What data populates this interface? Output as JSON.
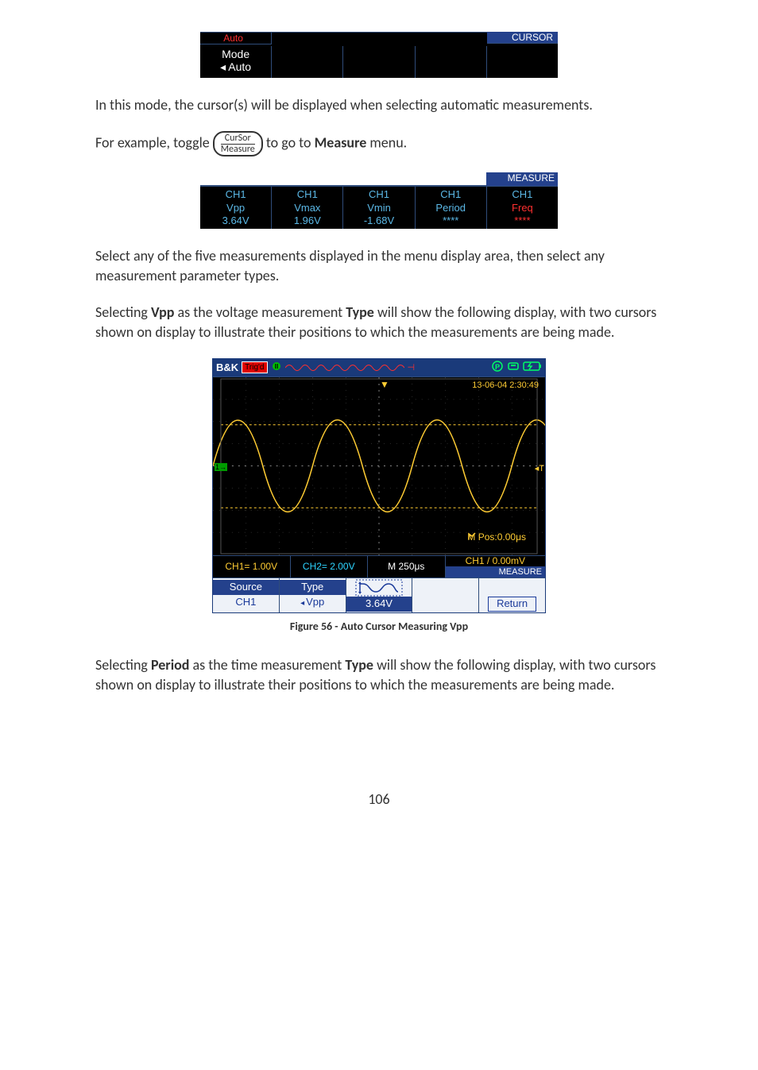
{
  "cursor_strip": {
    "title": "CURSOR",
    "auto_top": "Auto",
    "mode_label": "Mode",
    "mode_value": "Auto"
  },
  "para1": "In this mode, the cursor(s) will be displayed when selecting automatic measurements.",
  "para2_before": "For example, toggle ",
  "pill_top": "CurSor",
  "pill_bottom": "Measure",
  "para2_after_a": " to go to ",
  "para2_bold": "Measure",
  "para2_after_b": " menu.",
  "measure_strip": {
    "title": "MEASURE",
    "cells": [
      {
        "ch": "CH1",
        "param": "Vpp",
        "val": "3.64V"
      },
      {
        "ch": "CH1",
        "param": "Vmax",
        "val": "1.96V"
      },
      {
        "ch": "CH1",
        "param": "Vmin",
        "val": "-1.68V"
      },
      {
        "ch": "CH1",
        "param": "Period",
        "val": "****"
      },
      {
        "ch": "CH1",
        "param": "Freq",
        "val": "****",
        "freq": true
      }
    ]
  },
  "para3": "Select any of the five measurements displayed in the menu display area, then select any measurement parameter types.",
  "para4_a": "Selecting ",
  "para4_b": "Vpp",
  "para4_c": " as the voltage measurement ",
  "para4_d": "Type",
  "para4_e": " will show the following display, with two cursors shown on display to illustrate their positions to which the measurements are being made.",
  "scope": {
    "logo": "B&K",
    "trigd": "Trig'd",
    "timestamp": "13-06-04 2:30:49",
    "mpos": "M Pos:0.00μs",
    "ch1": "CH1= 1.00V",
    "ch2": "CH2= 2.00V",
    "timebase": "M 250μs",
    "trigger": "CH1 / 0.00mV",
    "measure_title": "MEASURE",
    "menu_source_h": "Source",
    "menu_source_v": "CH1",
    "menu_type_h": "Type",
    "menu_type_v": "Vpp",
    "menu_val": "3.64V",
    "menu_return": "Return",
    "ch1_color": "#ffcc33",
    "ch2_color": "#2dd4ff",
    "grid_color": "#3a3a3a",
    "cursor_color": "#ffcc33"
  },
  "figure_caption": "Figure 56 - Auto Cursor Measuring Vpp",
  "para5_a": "Selecting ",
  "para5_b": "Period",
  "para5_c": " as the time measurement ",
  "para5_d": "Type",
  "para5_e": " will show the following display, with two cursors shown on display to illustrate their positions to which the measurements are being made.",
  "page_number": "106"
}
